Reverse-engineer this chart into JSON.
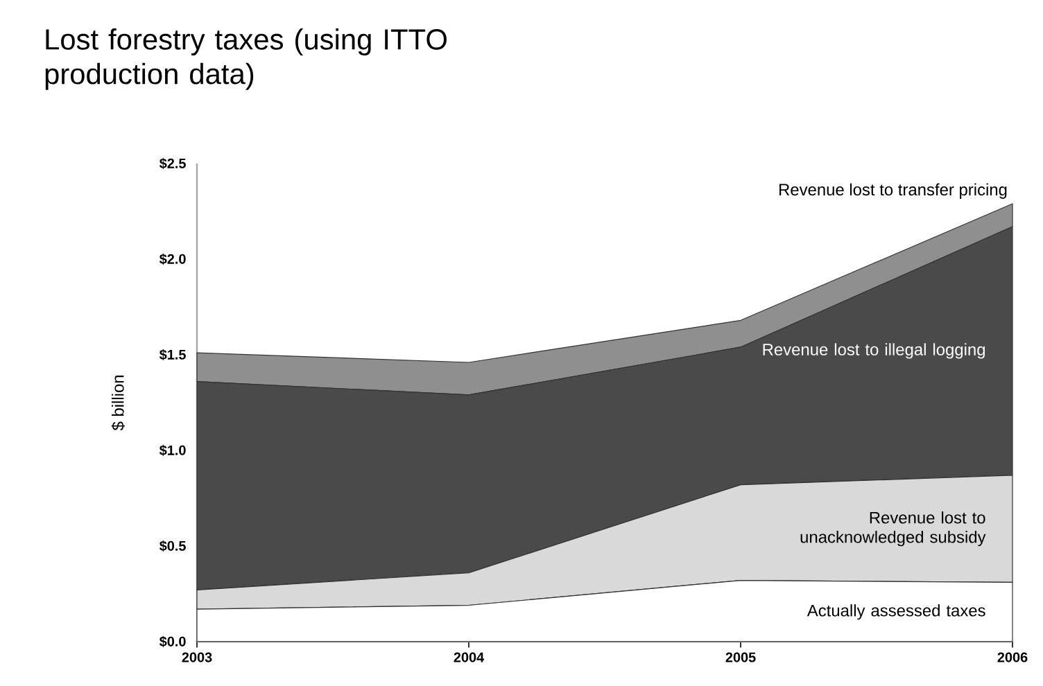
{
  "chart_data": {
    "type": "area",
    "title": "Lost forestry taxes (using ITTO production data)",
    "ylabel": "$ billion",
    "categories": [
      "2003",
      "2004",
      "2005",
      "2006"
    ],
    "stacked": true,
    "legend": false,
    "series": [
      {
        "name": "Actually assessed taxes",
        "color": "#ffffff",
        "values": [
          0.17,
          0.19,
          0.32,
          0.31
        ]
      },
      {
        "name": "Revenue lost to unacknowledged subsidy",
        "color": "#d9d9d9",
        "values": [
          0.1,
          0.17,
          0.5,
          0.56
        ]
      },
      {
        "name": "Revenue lost to illegal logging",
        "color": "#4a4a4a",
        "values": [
          1.09,
          0.93,
          0.72,
          1.3
        ]
      },
      {
        "name": "Revenue lost to transfer pricing",
        "color": "#8f8f8f",
        "values": [
          0.15,
          0.17,
          0.14,
          0.12
        ]
      }
    ],
    "ylim": [
      0,
      2.5
    ],
    "yticks": [
      {
        "value": 0,
        "label": "$0.0"
      },
      {
        "value": 0.5,
        "label": "$0.5"
      },
      {
        "value": 1,
        "label": "$1.0"
      },
      {
        "value": 1.5,
        "label": "$1.5"
      },
      {
        "value": 2,
        "label": "$2.0"
      },
      {
        "value": 2.5,
        "label": "$2.5"
      }
    ]
  }
}
